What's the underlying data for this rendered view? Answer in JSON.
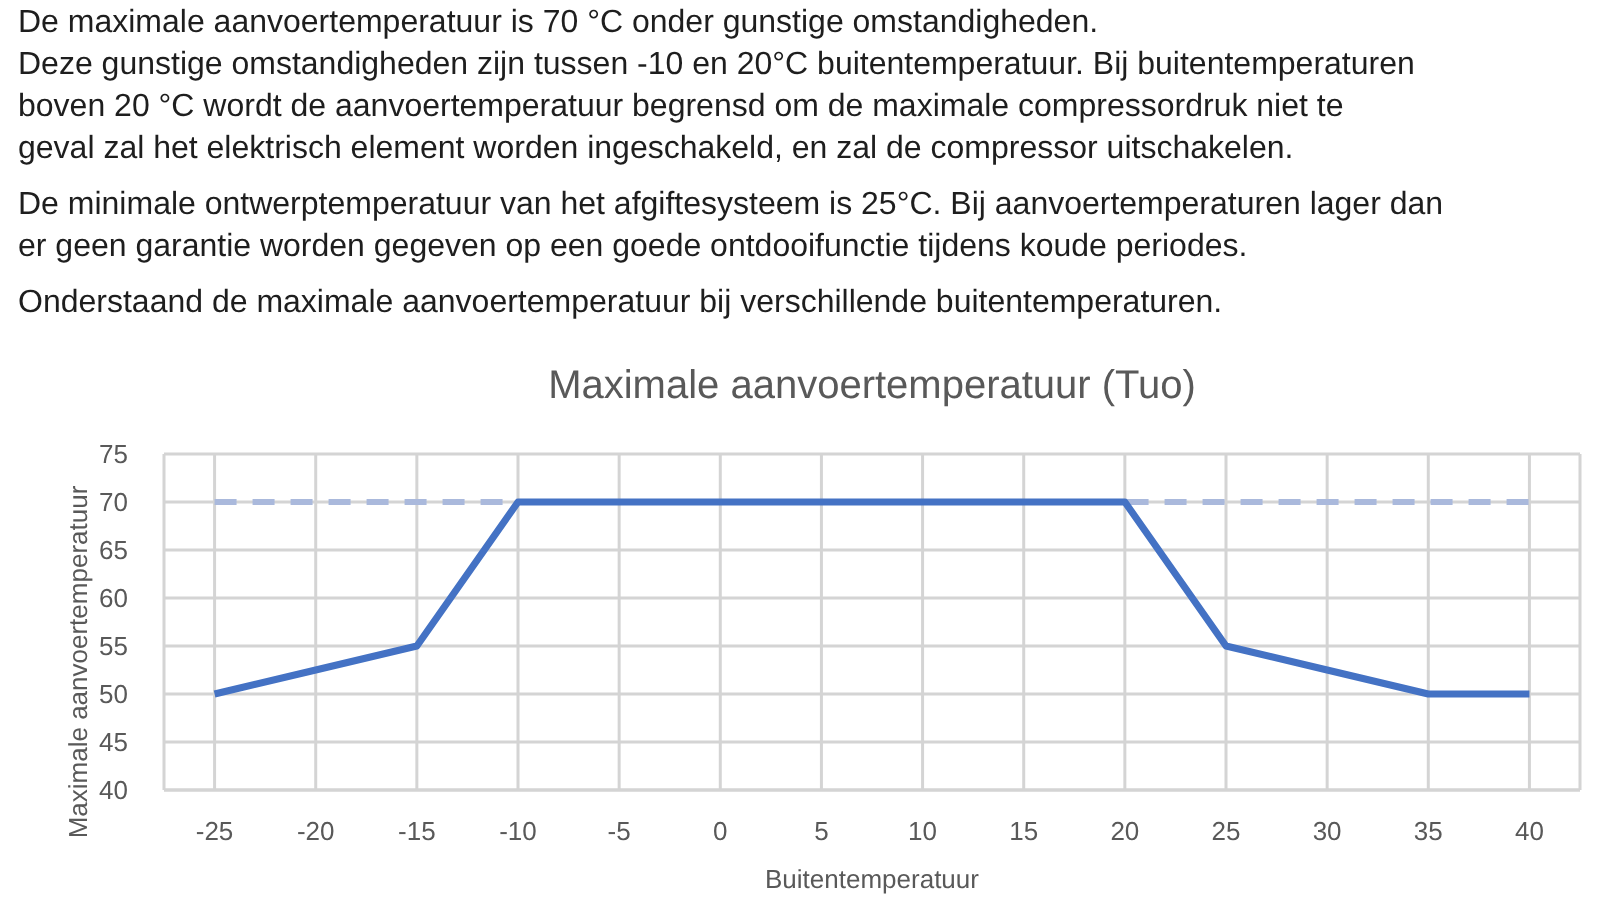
{
  "chart_data": {
    "type": "line",
    "title": "Maximale aanvoertemperatuur (Tuo)",
    "xlabel": "Buitentemperatuur",
    "ylabel": "Maximale aanvoertemperatuur",
    "annotations": [
      "De maximale aanvoertemperatuur is 70 °C onder gunstige omstandigheden.",
      "Deze gunstige omstandigheden zijn tussen -10 en 20°C buitentemperatuur. Bij buitentemperaturen",
      "boven 20 °C wordt de aanvoertemperatuur begrensd om de maximale compressordruk niet te",
      "geval zal het elektrisch element worden ingeschakeld, en zal de compressor uitschakelen.",
      "De minimale ontwerptemperatuur van het afgiftesysteem is 25°C. Bij aanvoertemperaturen lager dan",
      "er geen garantie worden gegeven op een goede ontdooifunctie tijdens koude periodes.",
      "Onderstaand de maximale aanvoertemperatuur bij verschillende buitentemperaturen."
    ],
    "categories": [
      "-25",
      "-20",
      "-15",
      "-10",
      "-5",
      "0",
      "5",
      "10",
      "15",
      "20",
      "25",
      "30",
      "35",
      "40"
    ],
    "series": [
      {
        "color": "#aab9dc",
        "line_style": "dashed",
        "values": [
          70,
          70,
          70,
          70,
          70,
          70,
          70,
          70,
          70,
          70,
          70,
          70,
          70,
          70
        ]
      },
      {
        "color": "#4472c4",
        "values": [
          50,
          52.5,
          55,
          70,
          70,
          70,
          70,
          70,
          70,
          70,
          55,
          52.5,
          50,
          50
        ]
      }
    ],
    "ylim": [
      40,
      75
    ],
    "yticks": [
      40,
      45,
      50,
      55,
      60,
      65,
      70,
      75
    ],
    "grid": true,
    "line_style": "solid"
  }
}
